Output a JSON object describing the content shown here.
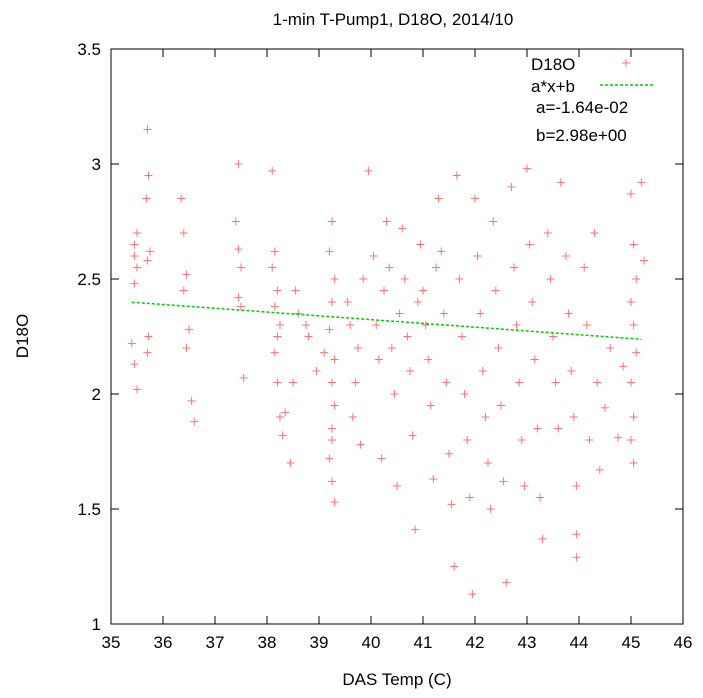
{
  "chart_data": {
    "type": "scatter",
    "title": "1-min T-Pump1, D18O, 2014/10",
    "xlabel": "DAS Temp (C)",
    "ylabel": "D18O",
    "xlim": [
      35,
      46
    ],
    "ylim": [
      1,
      3.5
    ],
    "xticks": [
      "35",
      "36",
      "37",
      "38",
      "39",
      "40",
      "41",
      "42",
      "43",
      "44",
      "45",
      "46"
    ],
    "yticks": [
      "1",
      "1.5",
      "2",
      "2.5",
      "3",
      "3.5"
    ],
    "grid": false,
    "legend_position": "top-right",
    "colors": {
      "scatter": "#ff0000",
      "fit": "#00cc00"
    },
    "series": [
      {
        "name": "D18O",
        "kind": "scatter",
        "points": [
          [
            35.45,
            2.65
          ],
          [
            35.5,
            2.55
          ],
          [
            35.45,
            2.48
          ],
          [
            35.5,
            2.7
          ],
          [
            35.4,
            2.22
          ],
          [
            35.45,
            2.13
          ],
          [
            35.5,
            2.02
          ],
          [
            35.45,
            2.6
          ],
          [
            35.7,
            3.15
          ],
          [
            35.72,
            2.95
          ],
          [
            35.68,
            2.85
          ],
          [
            35.75,
            2.62
          ],
          [
            35.7,
            2.58
          ],
          [
            35.72,
            2.25
          ],
          [
            35.7,
            2.18
          ],
          [
            36.35,
            2.85
          ],
          [
            36.4,
            2.7
          ],
          [
            36.45,
            2.52
          ],
          [
            36.4,
            2.45
          ],
          [
            36.5,
            2.28
          ],
          [
            36.45,
            2.2
          ],
          [
            36.55,
            1.97
          ],
          [
            36.6,
            1.88
          ],
          [
            37.45,
            3.0
          ],
          [
            37.4,
            2.75
          ],
          [
            37.45,
            2.63
          ],
          [
            37.5,
            2.55
          ],
          [
            37.45,
            2.42
          ],
          [
            37.5,
            2.38
          ],
          [
            37.55,
            2.07
          ],
          [
            38.1,
            2.97
          ],
          [
            38.15,
            2.62
          ],
          [
            38.1,
            2.55
          ],
          [
            38.2,
            2.45
          ],
          [
            38.15,
            2.38
          ],
          [
            38.25,
            2.3
          ],
          [
            38.2,
            2.25
          ],
          [
            38.15,
            2.18
          ],
          [
            38.2,
            2.05
          ],
          [
            38.25,
            1.9
          ],
          [
            38.3,
            1.82
          ],
          [
            38.35,
            1.92
          ],
          [
            38.45,
            1.7
          ],
          [
            38.5,
            2.05
          ],
          [
            38.55,
            2.45
          ],
          [
            38.6,
            2.35
          ],
          [
            38.75,
            2.3
          ],
          [
            38.8,
            2.25
          ],
          [
            38.95,
            2.1
          ],
          [
            39.1,
            2.18
          ],
          [
            39.25,
            2.75
          ],
          [
            39.2,
            2.62
          ],
          [
            39.3,
            2.5
          ],
          [
            39.25,
            2.4
          ],
          [
            39.2,
            2.28
          ],
          [
            39.3,
            2.15
          ],
          [
            39.25,
            2.05
          ],
          [
            39.3,
            1.95
          ],
          [
            39.25,
            1.85
          ],
          [
            39.2,
            1.72
          ],
          [
            39.25,
            1.62
          ],
          [
            39.3,
            1.53
          ],
          [
            39.25,
            1.8
          ],
          [
            39.55,
            2.4
          ],
          [
            39.6,
            2.3
          ],
          [
            39.75,
            2.2
          ],
          [
            39.7,
            2.05
          ],
          [
            39.65,
            1.9
          ],
          [
            39.8,
            1.78
          ],
          [
            39.85,
            2.5
          ],
          [
            39.95,
            2.97
          ],
          [
            40.05,
            2.6
          ],
          [
            40.1,
            2.3
          ],
          [
            40.15,
            2.15
          ],
          [
            40.2,
            1.72
          ],
          [
            40.25,
            2.45
          ],
          [
            40.3,
            2.75
          ],
          [
            40.35,
            2.55
          ],
          [
            40.4,
            2.2
          ],
          [
            40.45,
            2.0
          ],
          [
            40.5,
            1.6
          ],
          [
            40.55,
            2.35
          ],
          [
            40.6,
            2.72
          ],
          [
            40.65,
            2.5
          ],
          [
            40.7,
            2.25
          ],
          [
            40.75,
            2.1
          ],
          [
            40.8,
            1.82
          ],
          [
            40.85,
            1.41
          ],
          [
            40.9,
            2.4
          ],
          [
            40.95,
            2.65
          ],
          [
            41.0,
            2.45
          ],
          [
            41.05,
            2.3
          ],
          [
            41.1,
            2.15
          ],
          [
            41.15,
            1.95
          ],
          [
            41.2,
            1.63
          ],
          [
            41.25,
            2.55
          ],
          [
            41.3,
            2.85
          ],
          [
            41.35,
            2.62
          ],
          [
            41.4,
            2.35
          ],
          [
            41.45,
            2.05
          ],
          [
            41.5,
            1.74
          ],
          [
            41.55,
            1.52
          ],
          [
            41.6,
            1.25
          ],
          [
            41.65,
            2.95
          ],
          [
            41.7,
            2.5
          ],
          [
            41.75,
            2.25
          ],
          [
            41.8,
            2.0
          ],
          [
            41.85,
            1.8
          ],
          [
            41.9,
            1.55
          ],
          [
            41.95,
            1.13
          ],
          [
            42.0,
            2.85
          ],
          [
            42.05,
            2.6
          ],
          [
            42.1,
            2.35
          ],
          [
            42.15,
            2.1
          ],
          [
            42.2,
            1.9
          ],
          [
            42.25,
            1.7
          ],
          [
            42.3,
            1.5
          ],
          [
            42.35,
            2.75
          ],
          [
            42.4,
            2.45
          ],
          [
            42.45,
            2.2
          ],
          [
            42.5,
            1.95
          ],
          [
            42.55,
            1.62
          ],
          [
            42.6,
            1.18
          ],
          [
            42.7,
            2.9
          ],
          [
            42.75,
            2.55
          ],
          [
            42.8,
            2.3
          ],
          [
            42.85,
            2.05
          ],
          [
            42.9,
            1.8
          ],
          [
            42.95,
            1.6
          ],
          [
            43.0,
            2.98
          ],
          [
            43.05,
            2.65
          ],
          [
            43.1,
            2.4
          ],
          [
            43.15,
            2.15
          ],
          [
            43.2,
            1.85
          ],
          [
            43.25,
            1.55
          ],
          [
            43.3,
            1.37
          ],
          [
            43.4,
            2.7
          ],
          [
            43.45,
            2.5
          ],
          [
            43.5,
            2.25
          ],
          [
            43.55,
            2.05
          ],
          [
            43.6,
            1.85
          ],
          [
            43.65,
            2.92
          ],
          [
            43.75,
            2.6
          ],
          [
            43.8,
            2.35
          ],
          [
            43.85,
            2.1
          ],
          [
            43.9,
            1.9
          ],
          [
            43.95,
            1.6
          ],
          [
            43.95,
            1.29
          ],
          [
            43.95,
            1.39
          ],
          [
            44.1,
            2.55
          ],
          [
            44.15,
            2.3
          ],
          [
            44.2,
            1.8
          ],
          [
            44.3,
            2.7
          ],
          [
            44.35,
            2.05
          ],
          [
            44.4,
            1.67
          ],
          [
            44.5,
            1.94
          ],
          [
            44.6,
            2.2
          ],
          [
            44.75,
            1.81
          ],
          [
            44.85,
            2.12
          ],
          [
            45.0,
            2.87
          ],
          [
            45.05,
            2.65
          ],
          [
            45.1,
            2.5
          ],
          [
            45.0,
            2.4
          ],
          [
            45.05,
            2.3
          ],
          [
            45.1,
            2.18
          ],
          [
            45.0,
            2.05
          ],
          [
            45.05,
            1.9
          ],
          [
            45.0,
            1.8
          ],
          [
            45.05,
            1.7
          ],
          [
            45.2,
            2.92
          ],
          [
            45.25,
            2.58
          ]
        ]
      },
      {
        "name": "a*x+b",
        "kind": "line",
        "x": [
          35.4,
          45.2
        ],
        "y": [
          2.399,
          2.238
        ]
      }
    ],
    "annotations": [
      "a=-1.64e-02",
      "b=2.98e+00"
    ]
  }
}
